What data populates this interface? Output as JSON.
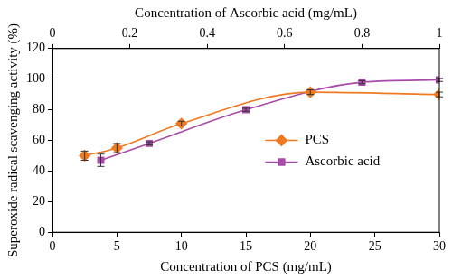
{
  "chart_data": {
    "type": "line",
    "xlabel": "Concentration of PCS (mg/mL)",
    "x2label": "Concentration of Ascorbic acid (mg/mL)",
    "ylabel": "Superoxide radical scavenging activity (%)",
    "xlim": [
      0,
      30
    ],
    "xticks": [
      0,
      5,
      10,
      15,
      20,
      25,
      30
    ],
    "x2lim": [
      0,
      1
    ],
    "x2ticks": [
      0,
      0.2,
      0.4,
      0.6,
      0.8,
      1
    ],
    "ylim": [
      0,
      120
    ],
    "yticks": [
      0,
      20,
      40,
      60,
      80,
      100,
      120
    ],
    "grid": false,
    "legend": "right",
    "series": [
      {
        "name": "PCS",
        "color": "#ee7a22",
        "marker": "diamond",
        "line_style": "solid",
        "x": [
          2.5,
          5,
          10,
          20,
          30
        ],
        "values": [
          50,
          55,
          71,
          91.5,
          90
        ],
        "errors": [
          3,
          3,
          1.5,
          1.5,
          1.5
        ]
      },
      {
        "name": "Ascorbic acid",
        "color": "#a84aa8",
        "marker": "square",
        "line_style": "solid",
        "axis": "x2",
        "x": [
          0.125,
          0.25,
          0.5,
          0.8,
          1
        ],
        "values": [
          47,
          58,
          80,
          98,
          99.5
        ],
        "errors": [
          4,
          1,
          1,
          1,
          1
        ]
      }
    ]
  }
}
